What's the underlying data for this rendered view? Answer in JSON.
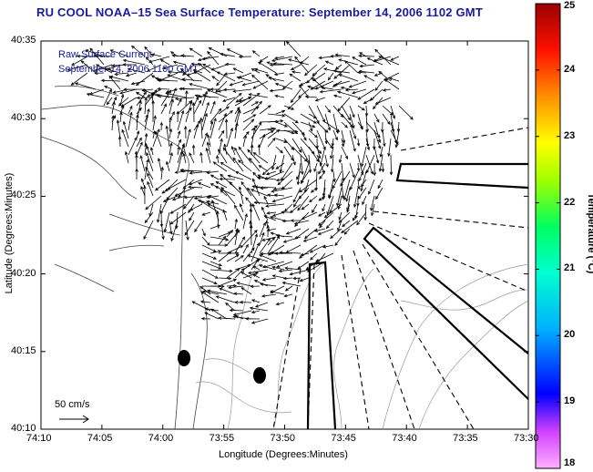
{
  "title": "RU COOL  NOAA–15  Sea Surface Temperature:  September 14, 2006 1102 GMT",
  "legend": {
    "line1": "Raw Surface Current",
    "line2": "September 14, 2006 1100 GMT"
  },
  "axes": {
    "xlabel": "Longitude (Degrees:Minutes)",
    "ylabel": "Latitude (Degrees:Minutes)",
    "xticks": [
      "74:10",
      "74:05",
      "74:00",
      "73:55",
      "73:50",
      "73:45",
      "73:40",
      "73:35",
      "73:30"
    ],
    "yticks": [
      "40:35",
      "40:30",
      "40:25",
      "40:20",
      "40:15",
      "40:10"
    ]
  },
  "colorbar": {
    "label": "Temperature (°C)",
    "ticks": [
      "25",
      "24",
      "23",
      "22",
      "21",
      "20",
      "19",
      "18"
    ],
    "range": [
      18,
      25
    ],
    "colors": [
      "#ff00ff",
      "#0000ff",
      "#00e5ff",
      "#00ff66",
      "#ffff00",
      "#ff8c00",
      "#ff0000",
      "#8b0000"
    ]
  },
  "scale": {
    "label": "50 cm/s"
  },
  "chart_data": {
    "type": "vector-field map",
    "xlim": [
      "74:10",
      "73:30"
    ],
    "ylim": [
      "40:10",
      "40:35"
    ]
  }
}
